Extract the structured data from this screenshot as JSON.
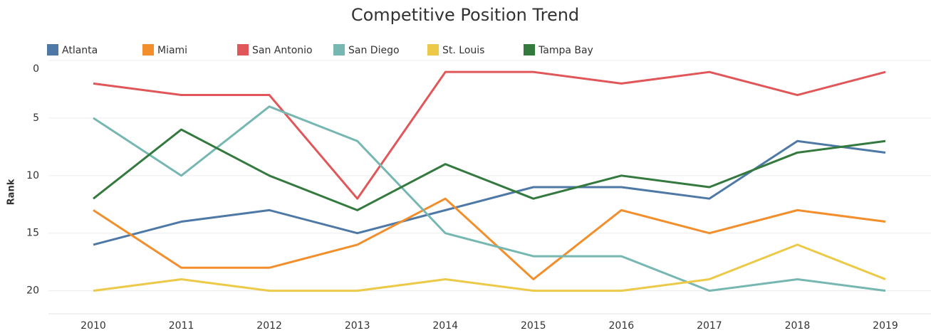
{
  "chart_data": {
    "type": "line",
    "title": "Competitive Position Trend",
    "y_label": "Rank",
    "categories": [
      "2010",
      "2011",
      "2012",
      "2013",
      "2014",
      "2015",
      "2016",
      "2017",
      "2018",
      "2019"
    ],
    "series": [
      {
        "name": "Atlanta",
        "color": "#4e79a7",
        "values": [
          16,
          14,
          13,
          15,
          13,
          11,
          11,
          12,
          7,
          8
        ]
      },
      {
        "name": "Miami",
        "color": "#f28e2b",
        "values": [
          13,
          18,
          18,
          16,
          12,
          19,
          13,
          15,
          13,
          14
        ]
      },
      {
        "name": "San Antonio",
        "color": "#e15759",
        "values": [
          2,
          3,
          3,
          12,
          1,
          1,
          2,
          1,
          3,
          1
        ]
      },
      {
        "name": "San Diego",
        "color": "#76b7b2",
        "values": [
          5,
          10,
          4,
          7,
          15,
          17,
          17,
          20,
          19,
          20
        ]
      },
      {
        "name": "St. Louis",
        "color": "#edc948",
        "values": [
          20,
          19,
          20,
          20,
          19,
          20,
          20,
          19,
          16,
          19
        ]
      },
      {
        "name": "Tampa Bay",
        "color": "#347a3f",
        "values": [
          12,
          6,
          10,
          13,
          9,
          12,
          10,
          11,
          8,
          7
        ]
      }
    ],
    "ylim": [
      22,
      0
    ],
    "yticks": [
      0,
      5,
      10,
      15,
      20
    ],
    "grid": true,
    "legend": "top-left"
  }
}
